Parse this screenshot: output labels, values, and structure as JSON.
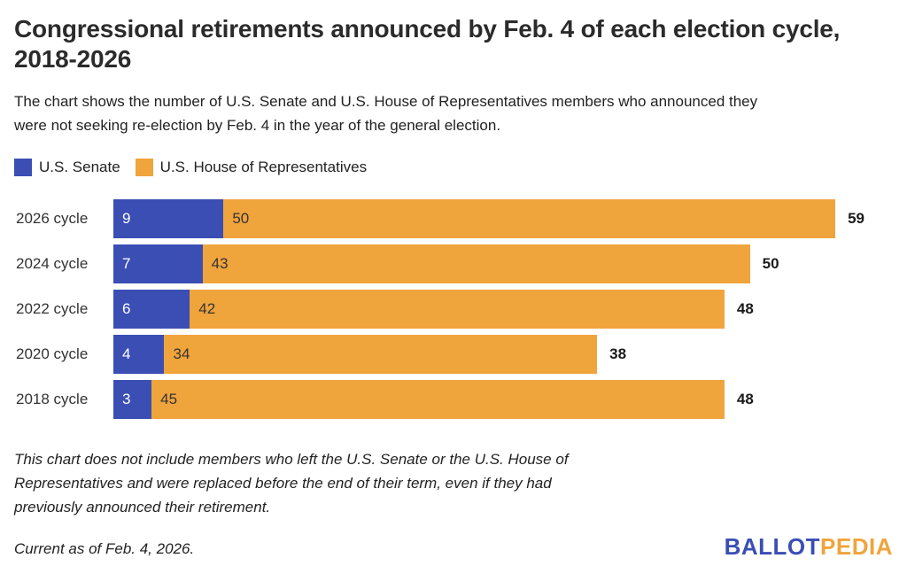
{
  "header": {
    "title": "Congressional retirements announced by Feb. 4 of each election cycle,\n2018-2026",
    "subtitle": "The chart shows the number of U.S. Senate and U.S. House of Representatives members who announced they\nwere not seeking re-election by Feb. 4 in the year of the general election."
  },
  "legend": {
    "items": [
      {
        "label": "U.S. Senate",
        "color": "#3A4EB4"
      },
      {
        "label": "U.S. House of Representatives",
        "color": "#F0A43C"
      }
    ]
  },
  "chart_data": {
    "type": "bar",
    "orientation": "horizontal",
    "stacked": true,
    "grid": false,
    "legend_position": "top",
    "xmax": 59,
    "categories": [
      "2026 cycle",
      "2024 cycle",
      "2022 cycle",
      "2020 cycle",
      "2018 cycle"
    ],
    "series": [
      {
        "name": "U.S. Senate",
        "color": "#3A4EB4",
        "values": [
          9,
          7,
          6,
          4,
          3
        ]
      },
      {
        "name": "U.S. House of Representatives",
        "color": "#F0A43C",
        "values": [
          50,
          43,
          42,
          34,
          45
        ]
      }
    ],
    "totals": [
      59,
      50,
      48,
      38,
      48
    ],
    "rows": [
      {
        "label": "2026 cycle",
        "senate": 9,
        "house": 50,
        "total": 59
      },
      {
        "label": "2024 cycle",
        "senate": 7,
        "house": 43,
        "total": 50
      },
      {
        "label": "2022 cycle",
        "senate": 6,
        "house": 42,
        "total": 48
      },
      {
        "label": "2020 cycle",
        "senate": 4,
        "house": 34,
        "total": 38
      },
      {
        "label": "2018 cycle",
        "senate": 3,
        "house": 45,
        "total": 48
      }
    ]
  },
  "footer": {
    "note": "This chart does not include members who left the U.S. Senate or the U.S. House of\nRepresentatives and were replaced before the end of their term, even if they had\npreviously announced their retirement.",
    "current_as_of": "Current as of Feb. 4, 2026.",
    "logo": {
      "part1": "BALLOT",
      "part2": "PEDIA",
      "color1": "#3A4EB4",
      "color2": "#F0A43C"
    }
  }
}
